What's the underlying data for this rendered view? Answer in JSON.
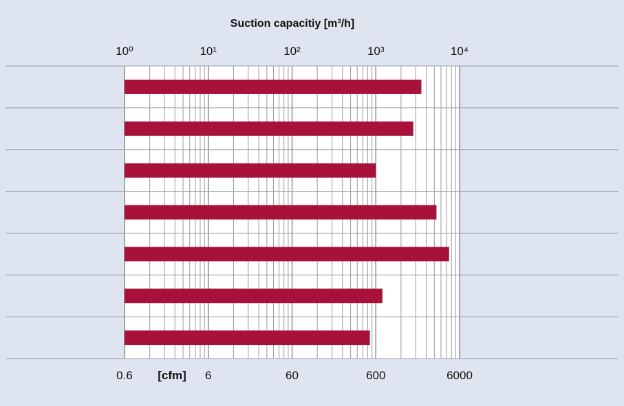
{
  "chart_data": {
    "type": "bar",
    "orientation": "horizontal",
    "title": "Suction capacitiy [m³/h]",
    "xscale": "log",
    "xlim": [
      1,
      10000
    ],
    "top_axis": {
      "ticks": [
        1,
        10,
        100,
        1000,
        10000
      ],
      "labels": [
        "10⁰",
        "10¹",
        "10²",
        "10³",
        "10⁴"
      ]
    },
    "bottom_axis": {
      "unit": "[cfm]",
      "ticks": [
        1,
        10,
        100,
        1000,
        10000
      ],
      "labels": [
        "0.6",
        "6",
        "60",
        "600",
        "6000"
      ]
    },
    "grid": true,
    "bar_color": "#a8123a",
    "series": [
      {
        "values": [
          3500,
          2800,
          1000,
          5300,
          7500,
          1200,
          850
        ]
      }
    ]
  }
}
